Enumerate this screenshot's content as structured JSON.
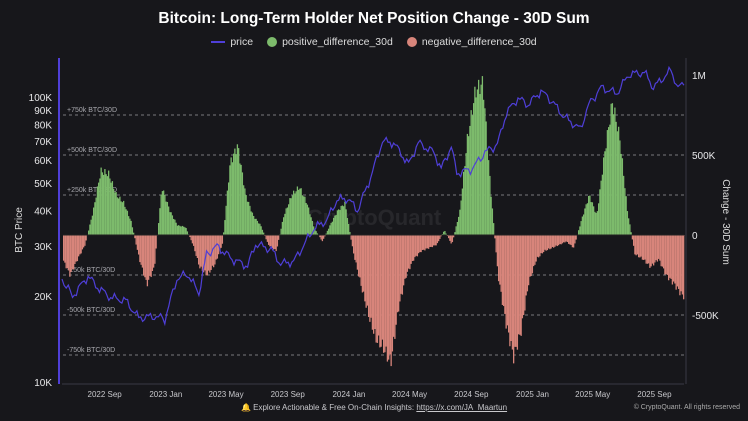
{
  "chart_data": {
    "type": "bar+line",
    "title": "Bitcoin: Long-Term Holder Net Position Change - 30D Sum",
    "ylabel_left": "BTC Price",
    "ylabel_right": "Change - 30D Sum",
    "left_scale": "log",
    "ylim_left": [
      10000,
      130000
    ],
    "ylim_right": [
      -930000,
      1080000
    ],
    "xlim": [
      "2022-06-10",
      "2025-11-01"
    ],
    "grid": false,
    "legend_position": "top",
    "legend": [
      "price",
      "positive_difference_30d",
      "negative_difference_30d"
    ],
    "left_ticks": [
      {
        "v": 10000,
        "l": "10K"
      },
      {
        "v": 20000,
        "l": "20K"
      },
      {
        "v": 30000,
        "l": "30K"
      },
      {
        "v": 40000,
        "l": "40K"
      },
      {
        "v": 50000,
        "l": "50K"
      },
      {
        "v": 60000,
        "l": "60K"
      },
      {
        "v": 70000,
        "l": "70K"
      },
      {
        "v": 80000,
        "l": "80K"
      },
      {
        "v": 90000,
        "l": "90K"
      },
      {
        "v": 100000,
        "l": "100K"
      }
    ],
    "right_ticks": [
      {
        "v": 1000000,
        "l": "1M"
      },
      {
        "v": 500000,
        "l": "500K"
      },
      {
        "v": 0,
        "l": "0"
      },
      {
        "v": -500000,
        "l": "-500K"
      }
    ],
    "x_ticks": [
      {
        "d": "2022-09-01",
        "l": "2022 Sep"
      },
      {
        "d": "2023-01-01",
        "l": "2023 Jan"
      },
      {
        "d": "2023-05-01",
        "l": "2023 May"
      },
      {
        "d": "2023-09-01",
        "l": "2023 Sep"
      },
      {
        "d": "2024-01-01",
        "l": "2024 Jan"
      },
      {
        "d": "2024-05-01",
        "l": "2024 May"
      },
      {
        "d": "2024-09-01",
        "l": "2024 Sep"
      },
      {
        "d": "2025-01-01",
        "l": "2025 Jan"
      },
      {
        "d": "2025-05-01",
        "l": "2025 May"
      },
      {
        "d": "2025-09-01",
        "l": "2025 Sep"
      }
    ],
    "reference_lines": [
      {
        "v": 750000,
        "l": "+750k BTC/30D"
      },
      {
        "v": 500000,
        "l": "+500k BTC/30D"
      },
      {
        "v": 250000,
        "l": "+250k BTC/30D"
      },
      {
        "v": -250000,
        "l": "-250k BTC/30D"
      },
      {
        "v": -500000,
        "l": "-500k BTC/30D"
      },
      {
        "v": -750000,
        "l": "-750k BTC/30D"
      }
    ],
    "colors": {
      "price": "#4f3fd8",
      "positive": "#7dbb6c",
      "negative": "#d8857b",
      "reference": "#9a9aa0"
    },
    "price": [
      [
        "2022-06-10",
        23000
      ],
      [
        "2022-07-01",
        20000
      ],
      [
        "2022-08-01",
        23500
      ],
      [
        "2022-08-20",
        21500
      ],
      [
        "2022-09-15",
        19800
      ],
      [
        "2022-10-15",
        19300
      ],
      [
        "2022-11-10",
        16800
      ],
      [
        "2022-12-15",
        17000
      ],
      [
        "2023-01-01",
        16600
      ],
      [
        "2023-01-25",
        23000
      ],
      [
        "2023-02-15",
        24000
      ],
      [
        "2023-03-10",
        20500
      ],
      [
        "2023-03-25",
        28000
      ],
      [
        "2023-04-15",
        30000
      ],
      [
        "2023-05-15",
        27000
      ],
      [
        "2023-06-15",
        25500
      ],
      [
        "2023-07-01",
        30500
      ],
      [
        "2023-08-01",
        29200
      ],
      [
        "2023-08-20",
        26000
      ],
      [
        "2023-09-15",
        26500
      ],
      [
        "2023-10-25",
        34500
      ],
      [
        "2023-11-20",
        37000
      ],
      [
        "2023-12-10",
        43500
      ],
      [
        "2024-01-01",
        44000
      ],
      [
        "2024-01-20",
        40000
      ],
      [
        "2024-02-15",
        52000
      ],
      [
        "2024-03-10",
        70000
      ],
      [
        "2024-04-01",
        69000
      ],
      [
        "2024-05-01",
        58000
      ],
      [
        "2024-05-20",
        69000
      ],
      [
        "2024-06-20",
        64000
      ],
      [
        "2024-07-05",
        56000
      ],
      [
        "2024-07-25",
        67000
      ],
      [
        "2024-08-05",
        54000
      ],
      [
        "2024-09-05",
        56000
      ],
      [
        "2024-09-30",
        64000
      ],
      [
        "2024-10-25",
        68000
      ],
      [
        "2024-11-12",
        88000
      ],
      [
        "2024-12-05",
        99000
      ],
      [
        "2024-12-25",
        94000
      ],
      [
        "2025-01-20",
        105000
      ],
      [
        "2025-02-10",
        97000
      ],
      [
        "2025-03-05",
        86000
      ],
      [
        "2025-04-08",
        77000
      ],
      [
        "2025-04-25",
        94000
      ],
      [
        "2025-05-20",
        108000
      ],
      [
        "2025-06-20",
        103000
      ],
      [
        "2025-07-14",
        120000
      ],
      [
        "2025-08-14",
        122000
      ],
      [
        "2025-09-01",
        108000
      ],
      [
        "2025-10-06",
        124000
      ],
      [
        "2025-10-20",
        108000
      ],
      [
        "2025-11-01",
        110000
      ]
    ],
    "net_position": [
      [
        "2022-06-10",
        -150000
      ],
      [
        "2022-06-25",
        -250000
      ],
      [
        "2022-07-10",
        -150000
      ],
      [
        "2022-07-25",
        -60000
      ],
      [
        "2022-08-10",
        150000
      ],
      [
        "2022-08-25",
        400000
      ],
      [
        "2022-09-10",
        380000
      ],
      [
        "2022-09-25",
        250000
      ],
      [
        "2022-10-10",
        200000
      ],
      [
        "2022-10-25",
        80000
      ],
      [
        "2022-11-10",
        -150000
      ],
      [
        "2022-11-25",
        -310000
      ],
      [
        "2022-12-10",
        -200000
      ],
      [
        "2022-12-25",
        300000
      ],
      [
        "2023-01-10",
        150000
      ],
      [
        "2023-01-25",
        60000
      ],
      [
        "2023-02-10",
        50000
      ],
      [
        "2023-02-25",
        -60000
      ],
      [
        "2023-03-10",
        -200000
      ],
      [
        "2023-03-25",
        -250000
      ],
      [
        "2023-04-10",
        -180000
      ],
      [
        "2023-04-25",
        -50000
      ],
      [
        "2023-05-10",
        450000
      ],
      [
        "2023-05-25",
        560000
      ],
      [
        "2023-06-10",
        250000
      ],
      [
        "2023-06-25",
        120000
      ],
      [
        "2023-07-10",
        60000
      ],
      [
        "2023-07-25",
        -60000
      ],
      [
        "2023-08-10",
        -100000
      ],
      [
        "2023-08-25",
        120000
      ],
      [
        "2023-09-10",
        250000
      ],
      [
        "2023-09-25",
        300000
      ],
      [
        "2023-10-10",
        200000
      ],
      [
        "2023-10-25",
        40000
      ],
      [
        "2023-11-10",
        -40000
      ],
      [
        "2023-11-25",
        60000
      ],
      [
        "2023-12-10",
        150000
      ],
      [
        "2023-12-25",
        200000
      ],
      [
        "2024-01-10",
        -100000
      ],
      [
        "2024-01-25",
        -300000
      ],
      [
        "2024-02-10",
        -500000
      ],
      [
        "2024-02-25",
        -650000
      ],
      [
        "2024-03-10",
        -700000
      ],
      [
        "2024-03-25",
        -800000
      ],
      [
        "2024-04-10",
        -450000
      ],
      [
        "2024-04-25",
        -250000
      ],
      [
        "2024-05-10",
        -150000
      ],
      [
        "2024-05-25",
        -100000
      ],
      [
        "2024-06-10",
        -80000
      ],
      [
        "2024-06-25",
        -60000
      ],
      [
        "2024-07-10",
        30000
      ],
      [
        "2024-07-25",
        -60000
      ],
      [
        "2024-08-10",
        150000
      ],
      [
        "2024-08-25",
        600000
      ],
      [
        "2024-09-10",
        900000
      ],
      [
        "2024-09-25",
        950000
      ],
      [
        "2024-10-10",
        300000
      ],
      [
        "2024-10-25",
        -250000
      ],
      [
        "2024-11-10",
        -550000
      ],
      [
        "2024-11-25",
        -760000
      ],
      [
        "2024-12-10",
        -600000
      ],
      [
        "2024-12-25",
        -300000
      ],
      [
        "2025-01-10",
        -150000
      ],
      [
        "2025-01-25",
        -100000
      ],
      [
        "2025-02-10",
        -80000
      ],
      [
        "2025-02-25",
        -60000
      ],
      [
        "2025-03-10",
        -40000
      ],
      [
        "2025-03-25",
        -80000
      ],
      [
        "2025-04-10",
        100000
      ],
      [
        "2025-04-25",
        250000
      ],
      [
        "2025-05-10",
        120000
      ],
      [
        "2025-05-25",
        500000
      ],
      [
        "2025-06-10",
        830000
      ],
      [
        "2025-06-25",
        600000
      ],
      [
        "2025-07-10",
        150000
      ],
      [
        "2025-07-25",
        -120000
      ],
      [
        "2025-08-10",
        -150000
      ],
      [
        "2025-08-25",
        -200000
      ],
      [
        "2025-09-10",
        -150000
      ],
      [
        "2025-09-25",
        -250000
      ],
      [
        "2025-10-10",
        -300000
      ],
      [
        "2025-10-28",
        -380000
      ]
    ]
  },
  "watermark": "CryptoQuant",
  "footer": {
    "text": "Explore Actionable & Free On-Chain Insights: ",
    "link": "https://x.com/JA_Maartun",
    "copyright": "© CryptoQuant. All rights reserved"
  }
}
